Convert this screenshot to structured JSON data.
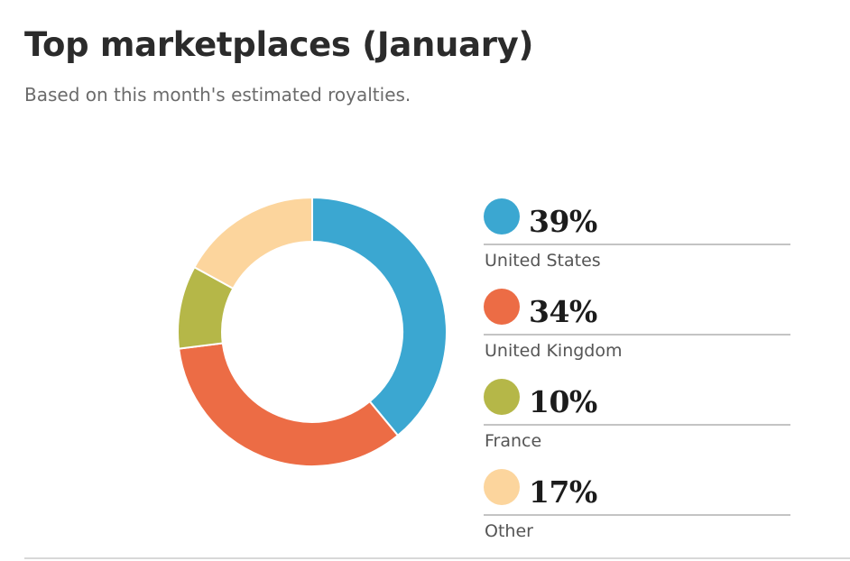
{
  "header": {
    "title": "Top marketplaces (January)",
    "subtitle": "Based on this month's estimated royalties."
  },
  "chart_data": {
    "type": "pie",
    "donut": true,
    "legend_position": "right",
    "slices": [
      {
        "label": "United States",
        "value": 39,
        "display": "39%",
        "color": "#3ba7d1"
      },
      {
        "label": "United Kingdom",
        "value": 34,
        "display": "34%",
        "color": "#ec6c45"
      },
      {
        "label": "France",
        "value": 10,
        "display": "10%",
        "color": "#b5b748"
      },
      {
        "label": "Other",
        "value": 17,
        "display": "17%",
        "color": "#fcd59d"
      }
    ]
  }
}
